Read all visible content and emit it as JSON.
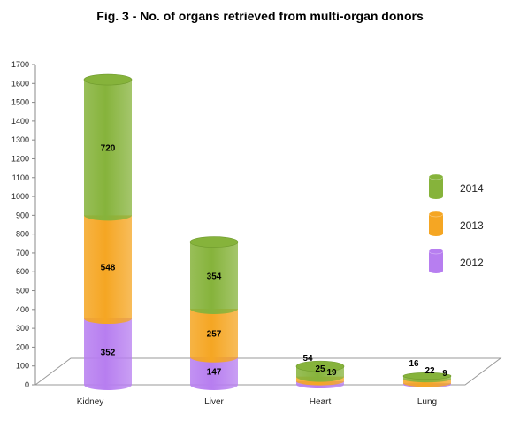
{
  "chart_data": {
    "type": "bar",
    "stacked": true,
    "title": "Fig. 3 - No. of organs retrieved from multi-organ donors",
    "categories": [
      "Kidney",
      "Liver",
      "Heart",
      "Lung"
    ],
    "series": [
      {
        "name": "2012",
        "values": [
          352,
          147,
          19,
          9
        ],
        "color": "#b77ef0"
      },
      {
        "name": "2013",
        "values": [
          548,
          257,
          25,
          22
        ],
        "color": "#f5a623"
      },
      {
        "name": "2014",
        "values": [
          720,
          354,
          54,
          16
        ],
        "color": "#86b33b"
      }
    ],
    "ylim": [
      0,
      1700
    ],
    "yticks": [
      0,
      100,
      200,
      300,
      400,
      500,
      600,
      700,
      800,
      900,
      1000,
      1100,
      1200,
      1300,
      1400,
      1500,
      1600,
      1700
    ],
    "legend": {
      "position": "right",
      "order": [
        "2014",
        "2013",
        "2012"
      ]
    },
    "grid": false
  }
}
